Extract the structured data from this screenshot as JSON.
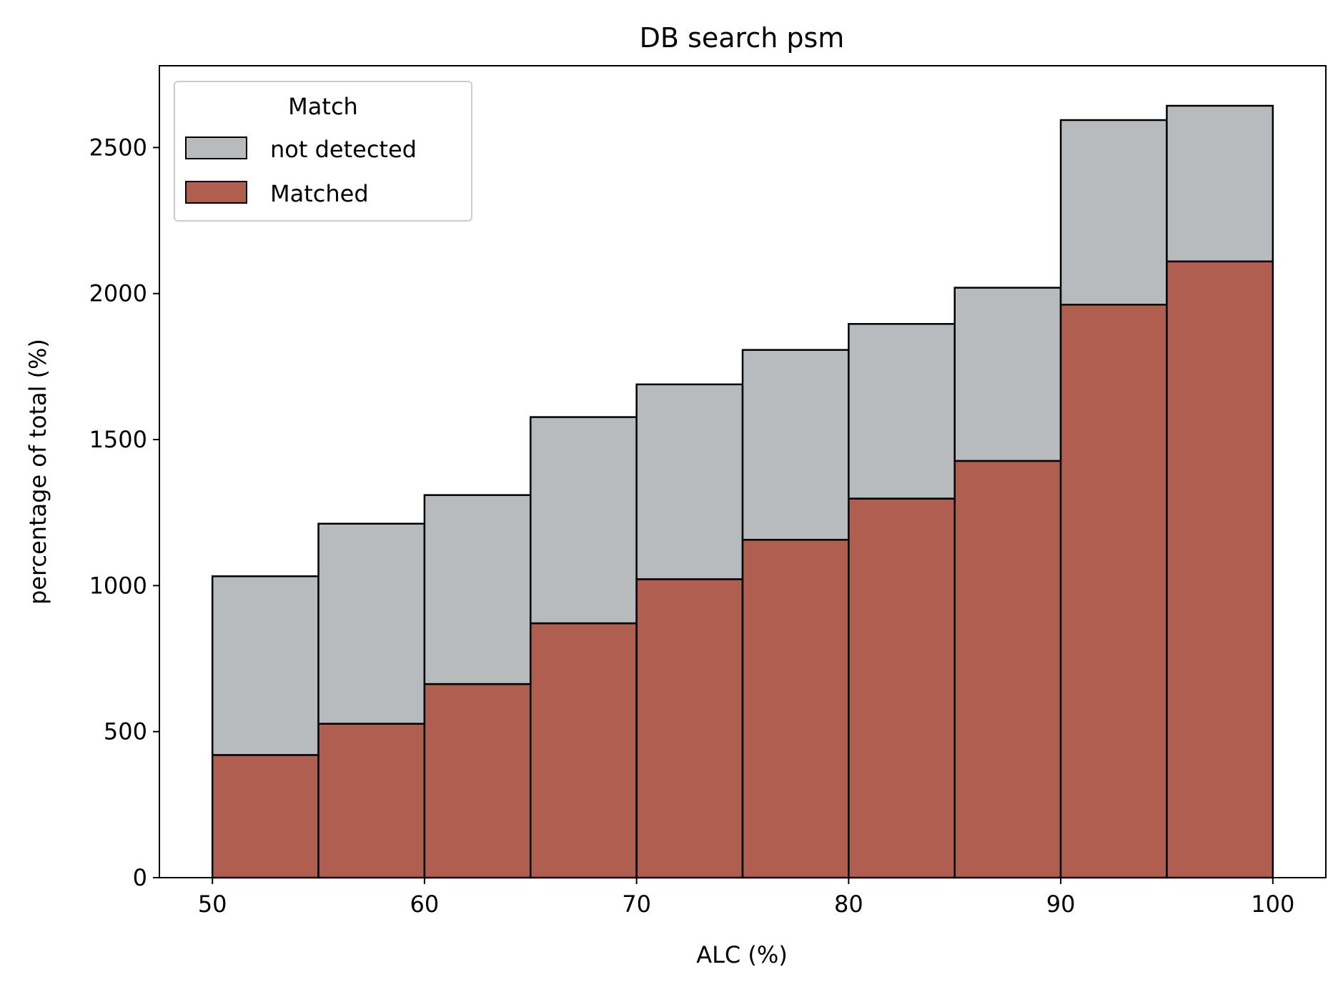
{
  "chart_data": {
    "type": "bar",
    "stacked": true,
    "histogram": true,
    "title": "DB search psm",
    "xlabel": "ALC (%)",
    "ylabel": "percentage of total (%)",
    "xlim": [
      47.5,
      102.5
    ],
    "ylim": [
      0,
      2780
    ],
    "bin_edges": [
      50,
      55,
      60,
      65,
      70,
      75,
      80,
      85,
      90,
      95,
      100
    ],
    "x_ticks": [
      50,
      60,
      70,
      80,
      90,
      100
    ],
    "y_ticks": [
      0,
      500,
      1000,
      1500,
      2000,
      2500
    ],
    "x_tick_labels": [
      "50",
      "60",
      "70",
      "80",
      "90",
      "100"
    ],
    "y_tick_labels": [
      "0",
      "500",
      "1000",
      "1500",
      "2000",
      "2500"
    ],
    "grid": false,
    "legend": {
      "title": "Match",
      "position": "top-left",
      "entries": [
        "not detected",
        "Matched"
      ]
    },
    "series": [
      {
        "name": "Matched",
        "color": "#b05e50",
        "values": [
          420,
          527,
          663,
          871,
          1022,
          1157,
          1298,
          1427,
          1962,
          2110
        ]
      },
      {
        "name": "not detected",
        "color": "#b8bbbd",
        "values": [
          612,
          685,
          647,
          706,
          667,
          650,
          598,
          593,
          632,
          533
        ]
      }
    ],
    "totals": [
      1032,
      1212,
      1310,
      1577,
      1689,
      1807,
      1896,
      2020,
      2594,
      2643
    ]
  }
}
